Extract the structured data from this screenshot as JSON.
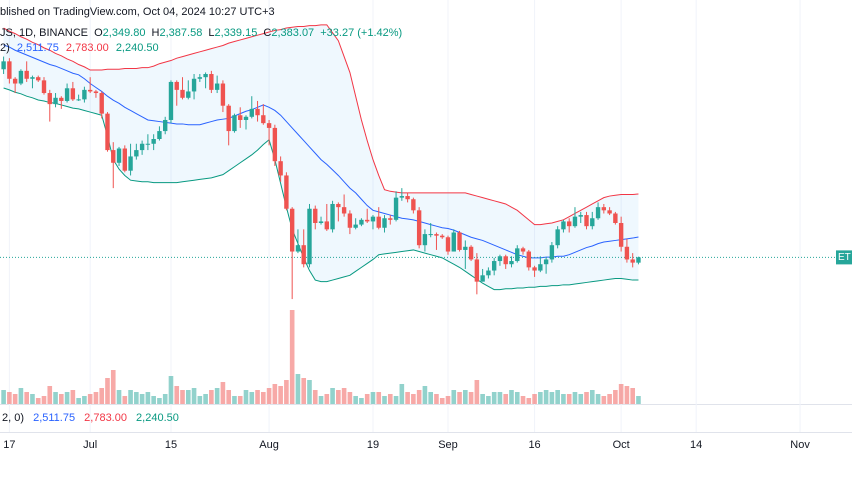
{
  "chart_data": {
    "type": "candlestick",
    "header": {
      "published": "blished on TradingView.com, Oct 04, 2024 10:27 UTC+3",
      "symbol": "JS, 1D, BINANCE",
      "ohlc": [
        {
          "label": "O",
          "value": "2,349.80"
        },
        {
          "label": "H",
          "value": "2,387.58"
        },
        {
          "label": "L",
          "value": "2,339.15"
        },
        {
          "label": "C",
          "value": "2,383.07"
        }
      ],
      "change": "+33.27 (+1.42%)",
      "bb_legend": "2)",
      "bb_values": [
        "2,511.75",
        "2,783.00",
        "2,240.50"
      ],
      "vol_legend": "2, 0)",
      "vol_values": [
        "2,511.75",
        "2,783.00",
        "2,240.50"
      ]
    },
    "price_tag": "ET",
    "up_color": "#26a69a",
    "down_color": "#ef5350",
    "xlim": [
      "Jun 16",
      "Nov 10"
    ],
    "ylim": [
      1458,
      4007
    ],
    "vlim": [
      0,
      100
    ],
    "last_close": 2383.07,
    "xticks": [
      {
        "value": "Jun 17",
        "label": "17"
      },
      {
        "value": "Jul 1",
        "label": "Jul"
      },
      {
        "value": "Jul 15",
        "label": "15"
      },
      {
        "value": "Aug 1",
        "label": "Aug"
      },
      {
        "value": "Aug 19",
        "label": "19"
      },
      {
        "value": "Sep 1",
        "label": "Sep"
      },
      {
        "value": "Sep 16",
        "label": "16"
      },
      {
        "value": "Oct 1",
        "label": "Oct"
      },
      {
        "value": "Oct 14",
        "label": "14"
      },
      {
        "value": "Nov 1",
        "label": "Nov"
      }
    ],
    "dates": [
      "Jun 16",
      "Jun 17",
      "Jun 18",
      "Jun 19",
      "Jun 20",
      "Jun 21",
      "Jun 22",
      "Jun 23",
      "Jun 24",
      "Jun 25",
      "Jun 26",
      "Jun 27",
      "Jun 28",
      "Jun 29",
      "Jun 30",
      "Jul 1",
      "Jul 2",
      "Jul 3",
      "Jul 4",
      "Jul 5",
      "Jul 6",
      "Jul 7",
      "Jul 8",
      "Jul 9",
      "Jul 10",
      "Jul 11",
      "Jul 12",
      "Jul 13",
      "Jul 14",
      "Jul 15",
      "Jul 16",
      "Jul 17",
      "Jul 18",
      "Jul 19",
      "Jul 20",
      "Jul 21",
      "Jul 22",
      "Jul 23",
      "Jul 24",
      "Jul 25",
      "Jul 26",
      "Jul 27",
      "Jul 28",
      "Jul 29",
      "Jul 30",
      "Jul 31",
      "Aug 1",
      "Aug 2",
      "Aug 3",
      "Aug 4",
      "Aug 5",
      "Aug 6",
      "Aug 7",
      "Aug 8",
      "Aug 9",
      "Aug 10",
      "Aug 11",
      "Aug 12",
      "Aug 13",
      "Aug 14",
      "Aug 15",
      "Aug 16",
      "Aug 17",
      "Aug 18",
      "Aug 19",
      "Aug 20",
      "Aug 21",
      "Aug 22",
      "Aug 23",
      "Aug 24",
      "Aug 25",
      "Aug 26",
      "Aug 27",
      "Aug 28",
      "Aug 29",
      "Aug 30",
      "Aug 31",
      "Sep 1",
      "Sep 2",
      "Sep 3",
      "Sep 4",
      "Sep 5",
      "Sep 6",
      "Sep 7",
      "Sep 8",
      "Sep 9",
      "Sep 10",
      "Sep 11",
      "Sep 12",
      "Sep 13",
      "Sep 14",
      "Sep 15",
      "Sep 16",
      "Sep 17",
      "Sep 18",
      "Sep 19",
      "Sep 20",
      "Sep 21",
      "Sep 22",
      "Sep 23",
      "Sep 24",
      "Sep 25",
      "Sep 26",
      "Sep 27",
      "Sep 28",
      "Sep 29",
      "Sep 30",
      "Oct 1",
      "Oct 2",
      "Oct 3",
      "Oct 4"
    ],
    "ohlc": [
      [
        3570,
        3650,
        3540,
        3620
      ],
      [
        3620,
        3640,
        3480,
        3510
      ],
      [
        3510,
        3520,
        3420,
        3480
      ],
      [
        3480,
        3570,
        3470,
        3560
      ],
      [
        3560,
        3620,
        3490,
        3510
      ],
      [
        3510,
        3530,
        3450,
        3520
      ],
      [
        3520,
        3530,
        3490,
        3500
      ],
      [
        3500,
        3520,
        3410,
        3420
      ],
      [
        3420,
        3440,
        3240,
        3350
      ],
      [
        3350,
        3420,
        3330,
        3390
      ],
      [
        3390,
        3400,
        3320,
        3370
      ],
      [
        3370,
        3480,
        3360,
        3450
      ],
      [
        3450,
        3490,
        3370,
        3380
      ],
      [
        3380,
        3410,
        3370,
        3380
      ],
      [
        3380,
        3460,
        3360,
        3440
      ],
      [
        3440,
        3520,
        3420,
        3430
      ],
      [
        3430,
        3440,
        3390,
        3420
      ],
      [
        3420,
        3430,
        3260,
        3290
      ],
      [
        3290,
        3300,
        3050,
        3060
      ],
      [
        3060,
        3110,
        2820,
        2980
      ],
      [
        2980,
        3080,
        2960,
        3070
      ],
      [
        3070,
        3090,
        2920,
        2930
      ],
      [
        2930,
        3100,
        2900,
        3020
      ],
      [
        3020,
        3100,
        3000,
        3060
      ],
      [
        3060,
        3120,
        3030,
        3100
      ],
      [
        3100,
        3160,
        3060,
        3100
      ],
      [
        3100,
        3160,
        3060,
        3130
      ],
      [
        3130,
        3210,
        3120,
        3180
      ],
      [
        3180,
        3270,
        3160,
        3250
      ],
      [
        3250,
        3500,
        3230,
        3490
      ],
      [
        3490,
        3500,
        3340,
        3440
      ],
      [
        3440,
        3520,
        3380,
        3390
      ],
      [
        3390,
        3500,
        3380,
        3430
      ],
      [
        3430,
        3540,
        3380,
        3510
      ],
      [
        3510,
        3540,
        3490,
        3520
      ],
      [
        3520,
        3550,
        3450,
        3540
      ],
      [
        3540,
        3560,
        3420,
        3440
      ],
      [
        3440,
        3530,
        3420,
        3480
      ],
      [
        3480,
        3500,
        3300,
        3340
      ],
      [
        3340,
        3350,
        3090,
        3180
      ],
      [
        3180,
        3290,
        3170,
        3280
      ],
      [
        3280,
        3330,
        3200,
        3250
      ],
      [
        3250,
        3280,
        3190,
        3270
      ],
      [
        3270,
        3400,
        3260,
        3320
      ],
      [
        3320,
        3370,
        3240,
        3280
      ],
      [
        3280,
        3350,
        3220,
        3230
      ],
      [
        3230,
        3250,
        3090,
        3200
      ],
      [
        3200,
        3220,
        2960,
        2990
      ],
      [
        2990,
        3020,
        2860,
        2900
      ],
      [
        2900,
        2920,
        2680,
        2690
      ],
      [
        2690,
        2700,
        2120,
        2420
      ],
      [
        2420,
        2560,
        2410,
        2460
      ],
      [
        2460,
        2560,
        2320,
        2340
      ],
      [
        2340,
        2720,
        2320,
        2690
      ],
      [
        2690,
        2710,
        2560,
        2600
      ],
      [
        2600,
        2640,
        2590,
        2610
      ],
      [
        2610,
        2720,
        2550,
        2560
      ],
      [
        2560,
        2740,
        2540,
        2720
      ],
      [
        2720,
        2730,
        2610,
        2700
      ],
      [
        2700,
        2780,
        2640,
        2660
      ],
      [
        2660,
        2680,
        2530,
        2570
      ],
      [
        2570,
        2630,
        2560,
        2590
      ],
      [
        2590,
        2630,
        2580,
        2620
      ],
      [
        2620,
        2690,
        2600,
        2610
      ],
      [
        2610,
        2650,
        2560,
        2640
      ],
      [
        2640,
        2700,
        2560,
        2570
      ],
      [
        2570,
        2650,
        2540,
        2630
      ],
      [
        2630,
        2650,
        2590,
        2620
      ],
      [
        2620,
        2800,
        2610,
        2760
      ],
      [
        2760,
        2820,
        2740,
        2770
      ],
      [
        2770,
        2790,
        2730,
        2750
      ],
      [
        2750,
        2760,
        2660,
        2680
      ],
      [
        2680,
        2700,
        2440,
        2460
      ],
      [
        2460,
        2560,
        2420,
        2530
      ],
      [
        2530,
        2600,
        2510,
        2530
      ],
      [
        2530,
        2540,
        2430,
        2520
      ],
      [
        2520,
        2530,
        2500,
        2510
      ],
      [
        2510,
        2520,
        2400,
        2420
      ],
      [
        2420,
        2560,
        2420,
        2540
      ],
      [
        2540,
        2550,
        2420,
        2430
      ],
      [
        2430,
        2490,
        2310,
        2450
      ],
      [
        2450,
        2460,
        2360,
        2370
      ],
      [
        2370,
        2410,
        2150,
        2230
      ],
      [
        2230,
        2310,
        2230,
        2270
      ],
      [
        2270,
        2320,
        2250,
        2300
      ],
      [
        2300,
        2380,
        2270,
        2360
      ],
      [
        2360,
        2400,
        2330,
        2390
      ],
      [
        2390,
        2400,
        2310,
        2340
      ],
      [
        2340,
        2390,
        2320,
        2360
      ],
      [
        2360,
        2460,
        2350,
        2440
      ],
      [
        2440,
        2450,
        2400,
        2420
      ],
      [
        2420,
        2430,
        2300,
        2320
      ],
      [
        2320,
        2330,
        2260,
        2300
      ],
      [
        2300,
        2390,
        2290,
        2340
      ],
      [
        2340,
        2380,
        2280,
        2370
      ],
      [
        2370,
        2480,
        2350,
        2460
      ],
      [
        2460,
        2580,
        2440,
        2560
      ],
      [
        2560,
        2620,
        2540,
        2610
      ],
      [
        2610,
        2630,
        2540,
        2580
      ],
      [
        2580,
        2700,
        2570,
        2640
      ],
      [
        2640,
        2670,
        2600,
        2650
      ],
      [
        2650,
        2670,
        2560,
        2580
      ],
      [
        2580,
        2670,
        2560,
        2630
      ],
      [
        2630,
        2730,
        2620,
        2700
      ],
      [
        2700,
        2720,
        2660,
        2680
      ],
      [
        2680,
        2700,
        2650,
        2660
      ],
      [
        2660,
        2670,
        2590,
        2600
      ],
      [
        2600,
        2640,
        2420,
        2450
      ],
      [
        2450,
        2500,
        2350,
        2370
      ],
      [
        2370,
        2410,
        2320,
        2350
      ],
      [
        2349.8,
        2387.58,
        2339.15,
        2383.07
      ]
    ],
    "volume": [
      14,
      12,
      10,
      16,
      12,
      10,
      6,
      8,
      18,
      12,
      10,
      12,
      14,
      6,
      8,
      10,
      12,
      16,
      26,
      34,
      14,
      8,
      14,
      12,
      10,
      12,
      8,
      6,
      10,
      28,
      18,
      14,
      14,
      16,
      8,
      10,
      14,
      16,
      22,
      14,
      8,
      8,
      14,
      12,
      14,
      12,
      16,
      20,
      18,
      24,
      94,
      30,
      26,
      24,
      14,
      8,
      10,
      16,
      14,
      16,
      12,
      8,
      6,
      10,
      12,
      12,
      8,
      10,
      8,
      20,
      12,
      10,
      14,
      18,
      12,
      10,
      6,
      8,
      14,
      12,
      14,
      12,
      24,
      10,
      8,
      12,
      12,
      10,
      14,
      12,
      8,
      6,
      10,
      12,
      14,
      12,
      14,
      10,
      10,
      12,
      10,
      12,
      14,
      10,
      8,
      10,
      14,
      20,
      18,
      16,
      8
    ],
    "bands": [
      {
        "color": "#2962ff",
        "values": [
          3723,
          3710,
          3690,
          3675,
          3660,
          3645,
          3630,
          3615,
          3600,
          3590,
          3575,
          3560,
          3545,
          3535,
          3510,
          3480,
          3455,
          3430,
          3400,
          3375,
          3355,
          3330,
          3310,
          3290,
          3270,
          3250,
          3245,
          3240,
          3235,
          3230,
          3225,
          3225,
          3220,
          3220,
          3220,
          3230,
          3240,
          3250,
          3255,
          3260,
          3275,
          3290,
          3305,
          3315,
          3330,
          3345,
          3330,
          3310,
          3280,
          3240,
          3200,
          3160,
          3120,
          3080,
          3040,
          3000,
          2970,
          2935,
          2900,
          2860,
          2820,
          2790,
          2750,
          2710,
          2680,
          2670,
          2660,
          2650,
          2640,
          2630,
          2625,
          2620,
          2610,
          2600,
          2590,
          2580,
          2570,
          2565,
          2555,
          2540,
          2525,
          2510,
          2500,
          2490,
          2475,
          2460,
          2445,
          2430,
          2415,
          2400,
          2390,
          2380,
          2380,
          2380,
          2385,
          2385,
          2390,
          2390,
          2400,
          2415,
          2430,
          2445,
          2455,
          2470,
          2480,
          2485,
          2490,
          2495,
          2500,
          2505,
          2511.75
        ]
      },
      {
        "color": "#f23645",
        "values": [
          3830,
          3810,
          3795,
          3775,
          3760,
          3740,
          3725,
          3705,
          3690,
          3670,
          3655,
          3635,
          3620,
          3600,
          3585,
          3565,
          3565,
          3565,
          3570,
          3570,
          3570,
          3575,
          3575,
          3575,
          3580,
          3580,
          3590,
          3605,
          3615,
          3625,
          3640,
          3650,
          3660,
          3670,
          3680,
          3690,
          3700,
          3710,
          3720,
          3735,
          3745,
          3755,
          3765,
          3775,
          3785,
          3795,
          3805,
          3815,
          3820,
          3830,
          3835,
          3840,
          3840,
          3845,
          3845,
          3850,
          3850,
          3800,
          3750,
          3650,
          3550,
          3400,
          3250,
          3120,
          3000,
          2900,
          2810,
          2800,
          2795,
          2790,
          2790,
          2790,
          2790,
          2790,
          2790,
          2790,
          2790,
          2790,
          2790,
          2790,
          2790,
          2780,
          2770,
          2760,
          2750,
          2740,
          2730,
          2720,
          2700,
          2680,
          2650,
          2620,
          2590,
          2590,
          2595,
          2600,
          2610,
          2620,
          2640,
          2660,
          2680,
          2700,
          2720,
          2740,
          2760,
          2770,
          2775,
          2780,
          2780,
          2780,
          2783
        ]
      },
      {
        "color": "#089981",
        "values": [
          3452,
          3440,
          3425,
          3415,
          3400,
          3390,
          3376,
          3370,
          3360,
          3355,
          3345,
          3335,
          3325,
          3320,
          3310,
          3300,
          3290,
          3280,
          3150,
          3000,
          2940,
          2900,
          2870,
          2865,
          2860,
          2860,
          2855,
          2855,
          2855,
          2855,
          2855,
          2860,
          2865,
          2870,
          2875,
          2880,
          2885,
          2895,
          2905,
          2930,
          2955,
          2980,
          3005,
          3030,
          3060,
          3095,
          3125,
          3000,
          2850,
          2700,
          2560,
          2470,
          2380,
          2300,
          2240,
          2230,
          2230,
          2240,
          2250,
          2260,
          2270,
          2295,
          2320,
          2345,
          2370,
          2400,
          2405,
          2410,
          2415,
          2420,
          2425,
          2430,
          2420,
          2410,
          2400,
          2390,
          2380,
          2360,
          2340,
          2320,
          2295,
          2270,
          2245,
          2220,
          2200,
          2180,
          2180,
          2185,
          2185,
          2190,
          2190,
          2195,
          2195,
          2200,
          2200,
          2205,
          2205,
          2210,
          2210,
          2215,
          2220,
          2225,
          2230,
          2235,
          2240,
          2245,
          2250,
          2250,
          2245,
          2240,
          2240.5
        ]
      }
    ],
    "band_fill": "#2196f3"
  }
}
